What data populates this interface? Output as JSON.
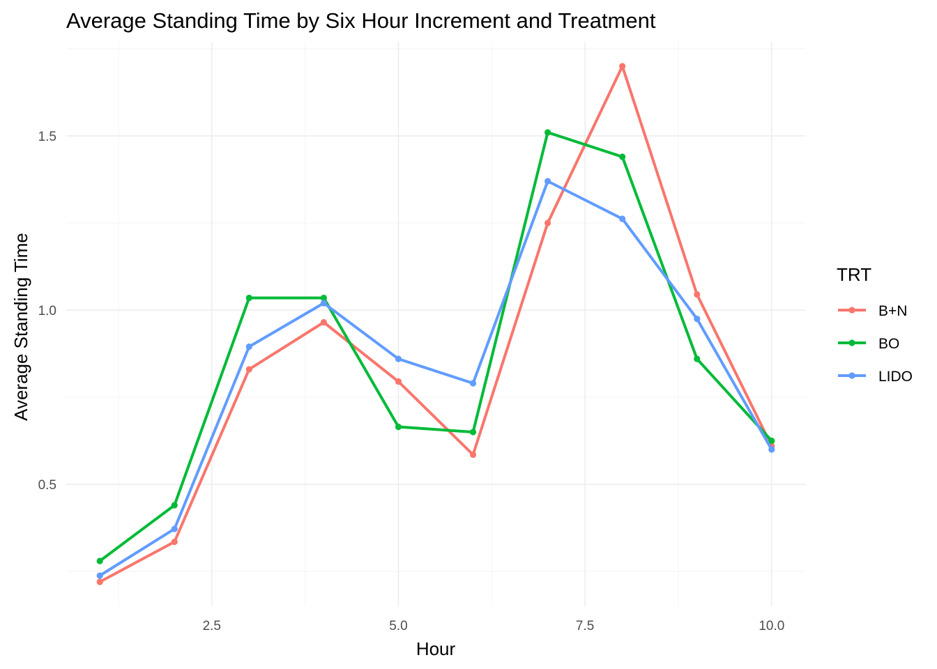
{
  "chart_data": {
    "type": "line",
    "title": "Average Standing Time by Six Hour Increment and Treatment",
    "xlabel": "Hour",
    "ylabel": "Average Standing Time",
    "x": [
      1,
      2,
      3,
      4,
      5,
      6,
      7,
      8,
      9,
      10
    ],
    "xlim": [
      0.55,
      10.45
    ],
    "ylim": [
      0.15,
      1.77
    ],
    "x_ticks": [
      2.5,
      5.0,
      7.5,
      10.0
    ],
    "x_tick_labels": [
      "2.5",
      "5.0",
      "7.5",
      "10.0"
    ],
    "y_ticks": [
      0.5,
      1.0,
      1.5
    ],
    "y_tick_labels": [
      "0.5",
      "1.0",
      "1.5"
    ],
    "grid": true,
    "legend": {
      "title": "TRT",
      "position": "right"
    },
    "series": [
      {
        "name": "B+N",
        "color": "#F8766D",
        "values": [
          0.22,
          0.335,
          0.83,
          0.965,
          0.795,
          0.585,
          1.25,
          1.7,
          1.045,
          0.61
        ]
      },
      {
        "name": "BO",
        "color": "#00BA38",
        "values": [
          0.28,
          0.44,
          1.035,
          1.035,
          0.665,
          0.65,
          1.51,
          1.44,
          0.86,
          0.625
        ]
      },
      {
        "name": "LIDO",
        "color": "#619CFF",
        "values": [
          0.238,
          0.372,
          0.895,
          1.02,
          0.86,
          0.79,
          1.37,
          1.262,
          0.975,
          0.6
        ]
      }
    ]
  }
}
